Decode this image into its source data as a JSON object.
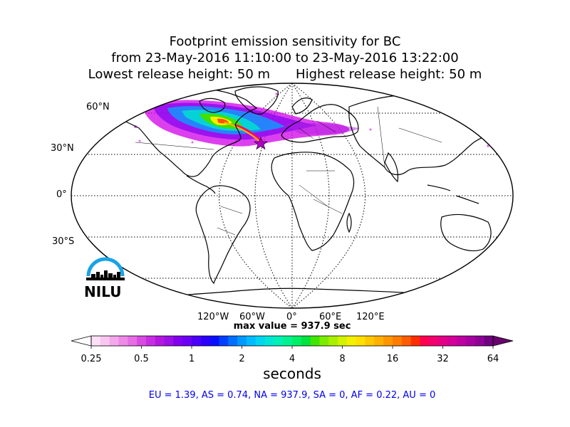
{
  "title": {
    "line1": "Footprint emission sensitivity for BC",
    "line2": "from 23-May-2016 11:10:00 to 23-May-2016 13:22:00",
    "lowest": "Lowest release height: 50 m",
    "highest": "Highest release height: 50 m"
  },
  "map": {
    "projection": "robinson",
    "lat_labels": [
      "60°N",
      "30°N",
      "0°",
      "30°S"
    ],
    "lon_labels": [
      "120°W",
      "60°W",
      "0°",
      "60°E",
      "120°E"
    ],
    "max_value_text": "max value = 937.9 sec",
    "release_marker": "star"
  },
  "colorbar": {
    "ticks": [
      "0.25",
      "0.5",
      "1",
      "2",
      "4",
      "8",
      "16",
      "32",
      "64"
    ],
    "label": "seconds",
    "colors": [
      "#fde0f7",
      "#f9c6f1",
      "#f3a8ec",
      "#ee8ae7",
      "#e66de4",
      "#d84be2",
      "#c82ee1",
      "#b417e0",
      "#9c10e6",
      "#8100ee",
      "#6a00f4",
      "#4c00f8",
      "#2b00fb",
      "#0a10ff",
      "#0040ff",
      "#0070ff",
      "#0099ff",
      "#00bbff",
      "#00d4f0",
      "#00e6d6",
      "#00f0b6",
      "#00f290",
      "#00ee66",
      "#00e23c",
      "#3fe600",
      "#7aec00",
      "#a8f000",
      "#d2f200",
      "#f4f000",
      "#ffe000",
      "#ffc800",
      "#ffb000",
      "#ff9600",
      "#ff7c00",
      "#ff5e00",
      "#ff2e00",
      "#ff0050",
      "#f2006e",
      "#e30086",
      "#d20096",
      "#bf00a0",
      "#a800a0",
      "#8e0096",
      "#700080"
    ],
    "extend_colors": {
      "under": "#ffffff",
      "over": "#6a006e"
    }
  },
  "footer": {
    "text": "EU = 1.39,  AS = 0.74,  NA = 937.9,  SA = 0,  AF = 0.22,  AU = 0"
  },
  "logo": {
    "text": "NILU",
    "accent_color": "#1aa3e6"
  }
}
